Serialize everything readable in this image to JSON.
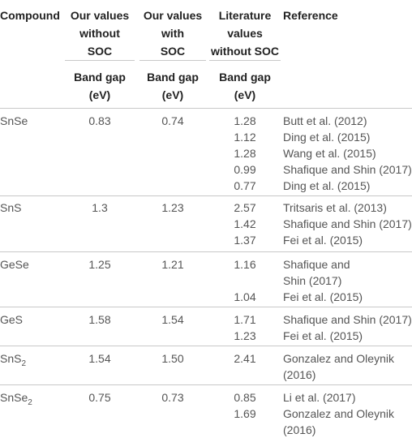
{
  "headers": {
    "compound": "Compound",
    "without_soc": [
      "Our values",
      "without",
      "SOC"
    ],
    "with_soc": [
      "Our values",
      "with",
      "SOC"
    ],
    "literature": [
      "Literature",
      "values",
      "without SOC"
    ],
    "reference": "Reference"
  },
  "subheaders": {
    "col1": [
      "Band gap",
      "(eV)"
    ],
    "col2": [
      "Band gap",
      "(eV)"
    ],
    "col3": [
      "Band gap",
      "(eV)"
    ]
  },
  "rows": [
    {
      "compound": "SnSe",
      "without_soc": "0.83",
      "with_soc": "0.74",
      "literature": [
        "1.28",
        "1.12",
        "1.28",
        "0.99",
        "0.77"
      ],
      "references": [
        "Butt et al. (2012)",
        "Ding et al. (2015)",
        "Wang et al. (2015)",
        "Shafique and Shin (2017)",
        "Ding et al. (2015)"
      ]
    },
    {
      "compound": "SnS",
      "without_soc": "1.3",
      "with_soc": "1.23",
      "literature": [
        "2.57",
        "1.42",
        "1.37"
      ],
      "references": [
        "Tritsaris et al. (2013)",
        "Shafique and Shin (2017)",
        "Fei et al. (2015)"
      ]
    },
    {
      "compound": "GeSe",
      "without_soc": "1.25",
      "with_soc": "1.21",
      "literature": [
        "1.16",
        "",
        "1.04"
      ],
      "references": [
        "Shafique and",
        "Shin (2017)",
        "Fei et al. (2015)"
      ]
    },
    {
      "compound": "GeS",
      "without_soc": "1.58",
      "with_soc": "1.54",
      "literature": [
        "1.71",
        "1.23"
      ],
      "references": [
        "Shafique and Shin (2017)",
        "Fei et al. (2015)"
      ]
    },
    {
      "compound": "SnS",
      "compound_sub": "2",
      "without_soc": "1.54",
      "with_soc": "1.50",
      "literature": [
        "2.41"
      ],
      "references": [
        "Gonzalez and Oleynik",
        "(2016)"
      ]
    },
    {
      "compound": "SnSe",
      "compound_sub": "2",
      "without_soc": "0.75",
      "with_soc": "0.73",
      "literature": [
        "0.85",
        "1.69"
      ],
      "references": [
        "Li et al. (2017)",
        "Gonzalez and Oleynik",
        "(2016)"
      ]
    }
  ]
}
